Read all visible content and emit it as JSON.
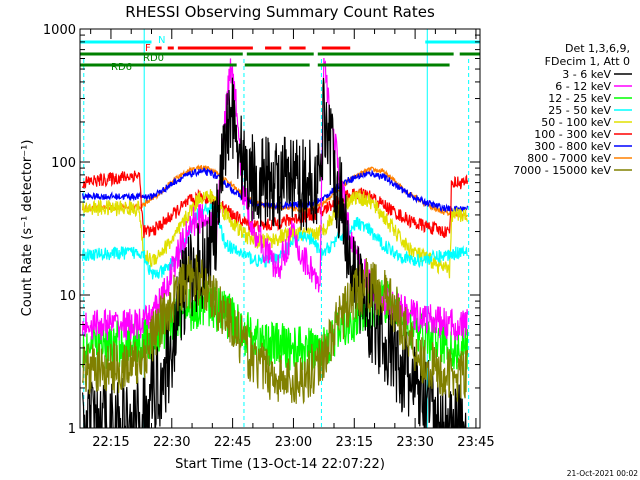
{
  "chart_data": {
    "type": "line",
    "title": "RHESSI Observing Summary Count Rates",
    "xlabel": "Start Time (13-Oct-14 22:07:22)",
    "ylabel": "Count Rate (s⁻¹ detector⁻¹)",
    "ylog": true,
    "ylim": [
      1,
      1000
    ],
    "xlim_minutes": [
      7.37,
      106.0
    ],
    "x_tick_labels": [
      "22:15",
      "22:30",
      "22:45",
      "23:00",
      "23:15",
      "23:30",
      "23:45"
    ],
    "x_tick_minutes": [
      15,
      30,
      45,
      60,
      75,
      90,
      105
    ],
    "y_tick_labels": [
      "1",
      "10",
      "100",
      "1000"
    ],
    "y_tick_values": [
      1,
      10,
      100,
      1000
    ],
    "legend_header": [
      "Det 1,3,6,9,",
      "FDecim 1, Att 0"
    ],
    "legend_position": "right",
    "timestamp": "21-Oct-2021 00:02",
    "flags": [
      {
        "label": "N",
        "color": "#00ffff",
        "segments": [
          [
            7.4,
            25
          ],
          [
            92.5,
            106
          ]
        ]
      },
      {
        "label": "F",
        "color": "#ff0000",
        "segments": [
          [
            26,
            27.5
          ],
          [
            29,
            30.5
          ],
          [
            31.5,
            50
          ],
          [
            53,
            57
          ],
          [
            59,
            63
          ],
          [
            67,
            74
          ]
        ]
      },
      {
        "label": "RD0",
        "color": "#008000",
        "segments": [
          [
            7.4,
            47.5
          ],
          [
            48.5,
            65
          ],
          [
            66,
            99.5
          ],
          [
            101,
            106
          ]
        ]
      },
      {
        "label": "RD6",
        "color": "#008000",
        "segments": [
          [
            7.4,
            46
          ],
          [
            48,
            64
          ],
          [
            66,
            98.5
          ]
        ]
      }
    ],
    "saa_lines_minutes": [
      23.2,
      93.0
    ],
    "gap_lines_minutes": [
      8.3,
      47.8,
      66.9,
      103.2
    ],
    "series": [
      {
        "name": "3 - 6 keV",
        "color": "#000000",
        "points": [
          [
            8,
            1
          ],
          [
            22.5,
            1.1
          ],
          [
            25,
            1.8
          ],
          [
            28,
            2.5
          ],
          [
            30,
            4
          ],
          [
            32,
            9
          ],
          [
            35,
            15
          ],
          [
            38,
            18
          ],
          [
            41,
            30
          ],
          [
            43,
            120
          ],
          [
            44.5,
            280
          ],
          [
            46,
            160
          ],
          [
            47,
            110
          ],
          [
            49,
            80
          ],
          [
            52,
            72
          ],
          [
            56,
            70
          ],
          [
            60,
            68
          ],
          [
            63,
            67
          ],
          [
            65,
            68
          ],
          [
            66.5,
            70
          ],
          [
            67.5,
            250
          ],
          [
            69,
            150
          ],
          [
            71,
            60
          ],
          [
            73,
            30
          ],
          [
            75,
            15
          ],
          [
            78,
            8
          ],
          [
            82,
            5
          ],
          [
            86,
            3
          ],
          [
            90,
            2
          ],
          [
            93,
            1.5
          ],
          [
            97,
            1
          ],
          [
            103,
            1
          ]
        ]
      },
      {
        "name": "6 - 12 keV",
        "color": "#ff00ff",
        "points": [
          [
            8,
            6
          ],
          [
            23,
            6
          ],
          [
            25,
            7
          ],
          [
            28,
            10
          ],
          [
            30,
            15
          ],
          [
            32,
            22
          ],
          [
            35,
            35
          ],
          [
            38,
            40
          ],
          [
            41,
            28
          ],
          [
            43,
            200
          ],
          [
            44.5,
            520
          ],
          [
            46,
            250
          ],
          [
            47.5,
            60
          ],
          [
            50,
            33
          ],
          [
            52,
            25
          ],
          [
            54,
            20
          ],
          [
            56,
            15
          ],
          [
            58,
            22
          ],
          [
            60,
            30
          ],
          [
            61,
            22
          ],
          [
            63,
            18
          ],
          [
            65,
            15
          ],
          [
            66.5,
            10
          ],
          [
            67.5,
            570
          ],
          [
            69,
            230
          ],
          [
            70,
            150
          ],
          [
            72,
            60
          ],
          [
            74,
            30
          ],
          [
            76,
            18
          ],
          [
            80,
            10
          ],
          [
            85,
            8
          ],
          [
            90,
            7
          ],
          [
            94,
            6.5
          ],
          [
            98,
            6
          ],
          [
            103,
            6
          ]
        ]
      },
      {
        "name": "12 - 25 keV",
        "color": "#00ff00",
        "points": [
          [
            8,
            4
          ],
          [
            23,
            4.5
          ],
          [
            26,
            5
          ],
          [
            29,
            6
          ],
          [
            32,
            7
          ],
          [
            35,
            8
          ],
          [
            38,
            9
          ],
          [
            41,
            8
          ],
          [
            44,
            7
          ],
          [
            46,
            6
          ],
          [
            49,
            5
          ],
          [
            52,
            4.5
          ],
          [
            56,
            4.2
          ],
          [
            60,
            4
          ],
          [
            64,
            3.8
          ],
          [
            67,
            4
          ],
          [
            70,
            5
          ],
          [
            73,
            6
          ],
          [
            76,
            7
          ],
          [
            79,
            8
          ],
          [
            82,
            9
          ],
          [
            85,
            8
          ],
          [
            88,
            6
          ],
          [
            91,
            5
          ],
          [
            95,
            4.5
          ],
          [
            100,
            4
          ],
          [
            103,
            4
          ]
        ]
      },
      {
        "name": "25 - 50 keV",
        "color": "#00ffff",
        "points": [
          [
            8,
            20
          ],
          [
            23,
            21
          ],
          [
            25,
            14
          ],
          [
            28,
            15
          ],
          [
            32,
            20
          ],
          [
            36,
            40
          ],
          [
            39,
            45
          ],
          [
            41,
            42
          ],
          [
            43,
            25
          ],
          [
            45,
            22
          ],
          [
            48,
            20
          ],
          [
            51,
            18
          ],
          [
            54,
            18
          ],
          [
            57,
            20
          ],
          [
            60,
            25
          ],
          [
            63,
            28
          ],
          [
            65,
            25
          ],
          [
            67,
            20
          ],
          [
            70,
            25
          ],
          [
            73,
            30
          ],
          [
            76,
            35
          ],
          [
            79,
            30
          ],
          [
            82,
            24
          ],
          [
            86,
            20
          ],
          [
            90,
            18
          ],
          [
            94,
            19
          ],
          [
            98,
            20
          ],
          [
            103,
            22
          ]
        ]
      },
      {
        "name": "50 - 100 keV",
        "color": "#e0e000",
        "points": [
          [
            8,
            45
          ],
          [
            22,
            45
          ],
          [
            23,
            20
          ],
          [
            25,
            18
          ],
          [
            28,
            22
          ],
          [
            31,
            28
          ],
          [
            34,
            40
          ],
          [
            37,
            55
          ],
          [
            40,
            55
          ],
          [
            43,
            42
          ],
          [
            46,
            32
          ],
          [
            49,
            27
          ],
          [
            52,
            25
          ],
          [
            55,
            26
          ],
          [
            58,
            28
          ],
          [
            61,
            29
          ],
          [
            64,
            28
          ],
          [
            67,
            30
          ],
          [
            70,
            40
          ],
          [
            73,
            50
          ],
          [
            76,
            55
          ],
          [
            79,
            50
          ],
          [
            82,
            40
          ],
          [
            85,
            30
          ],
          [
            88,
            23
          ],
          [
            91,
            20
          ],
          [
            94,
            18
          ],
          [
            97,
            16
          ],
          [
            98.5,
            15
          ],
          [
            99,
            40
          ],
          [
            103,
            40
          ]
        ]
      },
      {
        "name": "100 - 300 keV",
        "color": "#ff0000",
        "points": [
          [
            8,
            70
          ],
          [
            22,
            80
          ],
          [
            23,
            30
          ],
          [
            25,
            30
          ],
          [
            28,
            35
          ],
          [
            31,
            42
          ],
          [
            34,
            50
          ],
          [
            37,
            55
          ],
          [
            40,
            52
          ],
          [
            43,
            45
          ],
          [
            46,
            38
          ],
          [
            49,
            34
          ],
          [
            52,
            33
          ],
          [
            55,
            34
          ],
          [
            58,
            36
          ],
          [
            61,
            38
          ],
          [
            64,
            40
          ],
          [
            67,
            42
          ],
          [
            70,
            50
          ],
          [
            73,
            55
          ],
          [
            76,
            58
          ],
          [
            79,
            55
          ],
          [
            82,
            48
          ],
          [
            85,
            42
          ],
          [
            88,
            37
          ],
          [
            91,
            34
          ],
          [
            94,
            32
          ],
          [
            97,
            30
          ],
          [
            98.5,
            30
          ],
          [
            99,
            70
          ],
          [
            103,
            70
          ]
        ]
      },
      {
        "name": "300 - 800 keV",
        "color": "#0000ff",
        "points": [
          [
            8,
            55
          ],
          [
            22,
            55
          ],
          [
            25,
            55
          ],
          [
            28,
            62
          ],
          [
            31,
            72
          ],
          [
            34,
            80
          ],
          [
            37,
            85
          ],
          [
            40,
            82
          ],
          [
            43,
            70
          ],
          [
            46,
            58
          ],
          [
            49,
            50
          ],
          [
            52,
            47
          ],
          [
            55,
            47
          ],
          [
            58,
            47
          ],
          [
            61,
            48
          ],
          [
            64,
            48
          ],
          [
            67,
            52
          ],
          [
            70,
            62
          ],
          [
            73,
            72
          ],
          [
            76,
            78
          ],
          [
            79,
            82
          ],
          [
            82,
            78
          ],
          [
            85,
            68
          ],
          [
            88,
            58
          ],
          [
            91,
            52
          ],
          [
            94,
            48
          ],
          [
            97,
            45
          ],
          [
            100,
            44
          ],
          [
            103,
            45
          ]
        ]
      },
      {
        "name": "800 - 7000 keV",
        "color": "#ff8000",
        "points": [
          [
            8,
            45
          ],
          [
            22,
            46
          ],
          [
            25,
            52
          ],
          [
            28,
            62
          ],
          [
            31,
            75
          ],
          [
            34,
            85
          ],
          [
            37,
            92
          ],
          [
            40,
            88
          ],
          [
            43,
            75
          ],
          [
            46,
            62
          ],
          [
            49,
            52
          ],
          [
            52,
            48
          ],
          [
            55,
            46
          ],
          [
            58,
            45
          ],
          [
            61,
            44
          ],
          [
            64,
            44
          ],
          [
            67,
            48
          ],
          [
            70,
            58
          ],
          [
            73,
            70
          ],
          [
            76,
            80
          ],
          [
            79,
            88
          ],
          [
            82,
            85
          ],
          [
            85,
            72
          ],
          [
            88,
            60
          ],
          [
            91,
            52
          ],
          [
            94,
            46
          ],
          [
            97,
            42
          ],
          [
            100,
            40
          ],
          [
            103,
            40
          ]
        ]
      },
      {
        "name": "7000 - 15000 keV",
        "color": "#808000",
        "points": [
          [
            8,
            2.7
          ],
          [
            22,
            3
          ],
          [
            24,
            4
          ],
          [
            27,
            6
          ],
          [
            30,
            9
          ],
          [
            33,
            12
          ],
          [
            36,
            13
          ],
          [
            39,
            11
          ],
          [
            42,
            8
          ],
          [
            45,
            6
          ],
          [
            48,
            4
          ],
          [
            51,
            3
          ],
          [
            54,
            2.6
          ],
          [
            57,
            2.3
          ],
          [
            60,
            2.2
          ],
          [
            63,
            2.5
          ],
          [
            66,
            3
          ],
          [
            69,
            4.5
          ],
          [
            72,
            7
          ],
          [
            75,
            10
          ],
          [
            78,
            12
          ],
          [
            81,
            11
          ],
          [
            84,
            9
          ],
          [
            87,
            6
          ],
          [
            90,
            4
          ],
          [
            93,
            3
          ],
          [
            97,
            2.5
          ],
          [
            103,
            2.5
          ]
        ]
      }
    ]
  }
}
